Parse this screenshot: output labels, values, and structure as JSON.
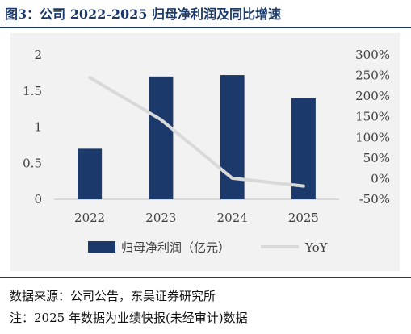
{
  "title": "图3：公司 2022-2025 归母净利润及同比增速",
  "source": "数据来源：公司公告，东吴证券研究所",
  "note": "注：2025 年数据为业绩快报(未经审计)数据",
  "colors": {
    "bar": "#1b3a6b",
    "line": "#d9d9d9",
    "background": "#f2f2f2",
    "axis_text": "#404040"
  },
  "chart_data": {
    "type": "bar",
    "categories": [
      "2022",
      "2023",
      "2024",
      "2025"
    ],
    "series": [
      {
        "name": "归母净利润（亿元）",
        "type": "bar",
        "axis": "left",
        "values": [
          0.7,
          1.7,
          1.72,
          1.4
        ]
      },
      {
        "name": "YoY",
        "type": "line",
        "axis": "right",
        "values": [
          245,
          143,
          1,
          -18
        ]
      }
    ],
    "left_axis": {
      "min": 0,
      "max": 2,
      "ticks": [
        "0",
        "0.5",
        "1",
        "1.5",
        "2"
      ],
      "tick_values": [
        0,
        0.5,
        1,
        1.5,
        2
      ]
    },
    "right_axis": {
      "min": -50,
      "max": 300,
      "ticks": [
        "-50%",
        "0%",
        "50%",
        "100%",
        "150%",
        "200%",
        "250%",
        "300%"
      ],
      "tick_values": [
        -50,
        0,
        50,
        100,
        150,
        200,
        250,
        300
      ]
    },
    "grid": false,
    "legend_position": "bottom"
  }
}
